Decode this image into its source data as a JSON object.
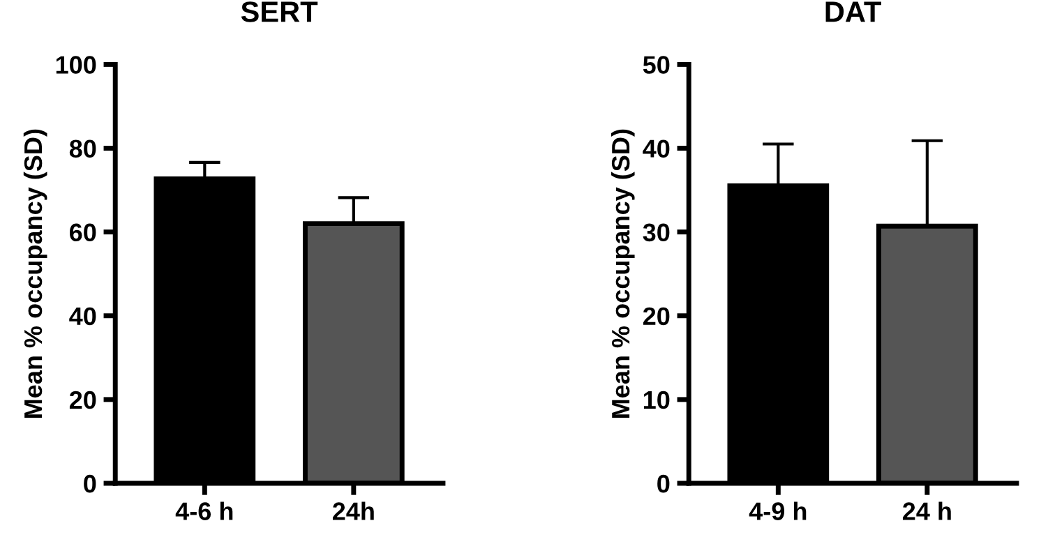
{
  "chart_data": [
    {
      "type": "bar",
      "title": "SERT",
      "ylabel": "Mean % occupancy (SD)",
      "categories": [
        "4-6 h",
        "24h"
      ],
      "values": [
        72.7,
        62.0
      ],
      "colors": [
        "#000000",
        "#555555"
      ],
      "errors": [
        [
          72.7,
          76.6
        ],
        [
          62.0,
          68.2
        ]
      ],
      "ylim": [
        0,
        100
      ],
      "yticks": [
        0,
        20,
        40,
        60,
        80,
        100
      ],
      "grid": false,
      "legend": false
    },
    {
      "type": "bar",
      "title": "DAT",
      "ylabel": "Mean % occupancy (SD)",
      "categories": [
        "4-9 h",
        "24 h"
      ],
      "values": [
        35.5,
        30.7
      ],
      "colors": [
        "#000000",
        "#555555"
      ],
      "errors": [
        [
          35.5,
          40.5
        ],
        [
          30.7,
          40.9
        ]
      ],
      "ylim": [
        0,
        50
      ],
      "yticks": [
        0,
        10,
        20,
        30,
        40,
        50
      ],
      "grid": false,
      "legend": false
    }
  ]
}
